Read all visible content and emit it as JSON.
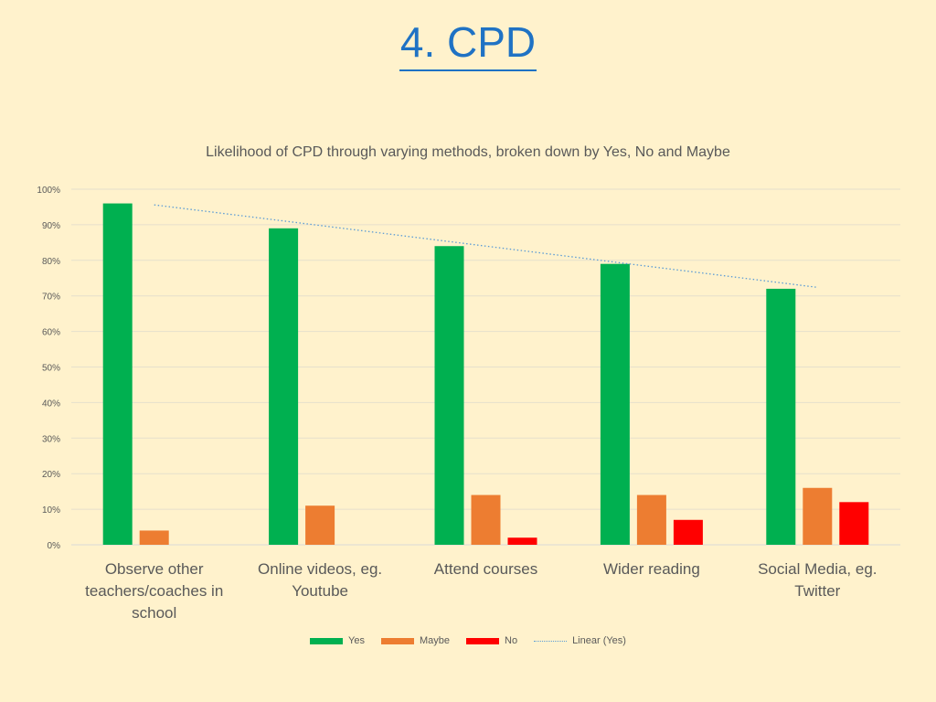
{
  "slide": {
    "title": "4. CPD"
  },
  "chart_data": {
    "type": "bar",
    "title": "Likelihood of CPD through varying methods, broken down by Yes, No and Maybe",
    "categories": [
      "Observe other teachers/coaches in school",
      "Online videos, eg. Youtube",
      "Attend courses",
      "Wider reading",
      "Social Media, eg. Twitter"
    ],
    "category_lines": [
      [
        "Observe other",
        "teachers/coaches in",
        "school"
      ],
      [
        "Online videos, eg.",
        "Youtube"
      ],
      [
        "Attend courses"
      ],
      [
        "Wider reading"
      ],
      [
        "Social Media, eg.",
        "Twitter"
      ]
    ],
    "series": [
      {
        "name": "Yes",
        "color": "#00b050",
        "values": [
          96,
          89,
          84,
          79,
          72
        ]
      },
      {
        "name": "Maybe",
        "color": "#ed7d31",
        "values": [
          4,
          11,
          14,
          14,
          16
        ]
      },
      {
        "name": "No",
        "color": "#ff0000",
        "values": [
          0,
          0,
          2,
          7,
          12
        ]
      }
    ],
    "trendline": {
      "name": "Linear (Yes)",
      "series": "Yes",
      "color": "#5b9bd5",
      "style": "dotted"
    },
    "ylim": [
      0,
      100
    ],
    "yticks": [
      "0%",
      "10%",
      "20%",
      "30%",
      "40%",
      "50%",
      "60%",
      "70%",
      "80%",
      "90%",
      "100%"
    ],
    "grid": true,
    "legend_position": "bottom"
  }
}
